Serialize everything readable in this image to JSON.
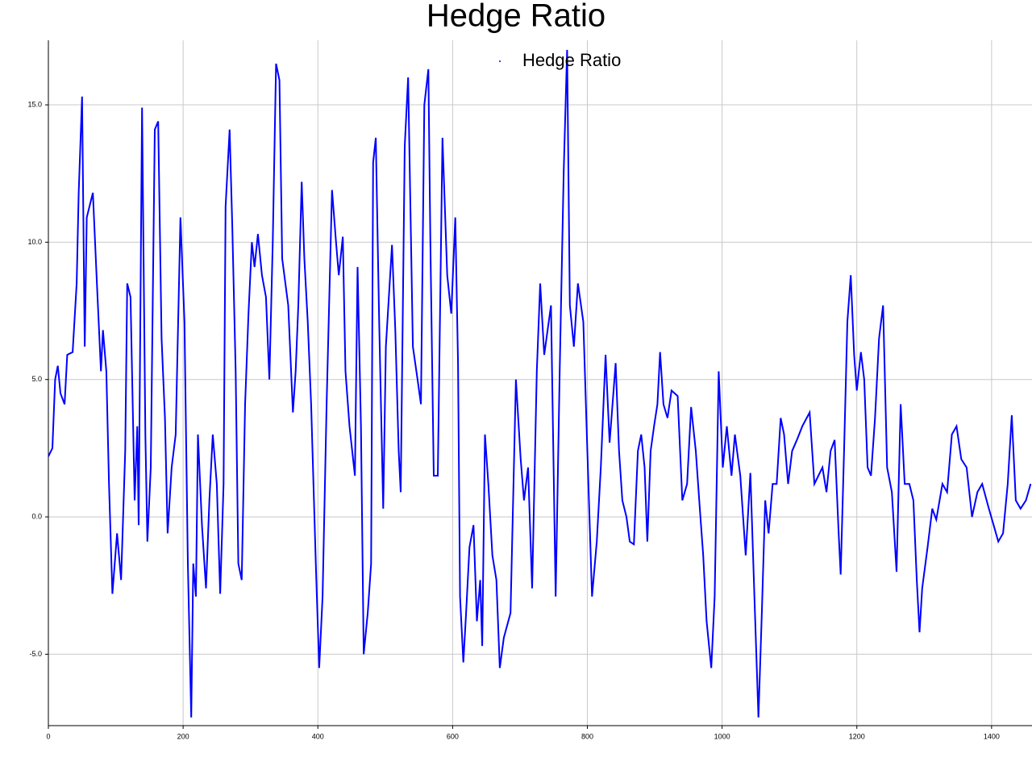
{
  "chart_data": {
    "type": "line",
    "title": "Hedge Ratio",
    "x": [
      0,
      6,
      10,
      14,
      18,
      24,
      28,
      36,
      42,
      45,
      50,
      54,
      57,
      66,
      72,
      78,
      81,
      86,
      90,
      95,
      102,
      108,
      114,
      117,
      122,
      128,
      132,
      134,
      139,
      144,
      147,
      152,
      158,
      163,
      168,
      173,
      177,
      183,
      189,
      196,
      202,
      207,
      212,
      215,
      219,
      222,
      228,
      234,
      239,
      244,
      250,
      255,
      260,
      263,
      269,
      273,
      278,
      282,
      287,
      292,
      297,
      302,
      306,
      311,
      317,
      323,
      328,
      333,
      338,
      343,
      347,
      356,
      363,
      367,
      371,
      376,
      380,
      385,
      390,
      397,
      402,
      407,
      413,
      421,
      427,
      431,
      437,
      441,
      447,
      455,
      459,
      464,
      468,
      474,
      479,
      482,
      486,
      491,
      497,
      501,
      510,
      515,
      520,
      523,
      529,
      534,
      541,
      548,
      553,
      558,
      564,
      567,
      572,
      578,
      585,
      592,
      598,
      604,
      608,
      611,
      616,
      620,
      625,
      631,
      636,
      641,
      644,
      648,
      653,
      659,
      665,
      670,
      676,
      686,
      694,
      701,
      706,
      712,
      718,
      725,
      730,
      736,
      746,
      753,
      759,
      765,
      770,
      774,
      780,
      786,
      794,
      800,
      807,
      814,
      820,
      827,
      833,
      842,
      847,
      852,
      858,
      863,
      869,
      875,
      880,
      885,
      889,
      894,
      899,
      904,
      908,
      913,
      919,
      925,
      934,
      941,
      948,
      954,
      961,
      967,
      972,
      977,
      984,
      989,
      995,
      1001,
      1007,
      1014,
      1019,
      1027,
      1035,
      1042,
      1048,
      1054,
      1059,
      1064,
      1069,
      1075,
      1081,
      1087,
      1092,
      1098,
      1104,
      1111,
      1119,
      1130,
      1137,
      1143,
      1149,
      1155,
      1161,
      1167,
      1173,
      1176,
      1181,
      1186,
      1191,
      1196,
      1200,
      1206,
      1211,
      1216,
      1221,
      1227,
      1233,
      1239,
      1245,
      1252,
      1259,
      1265,
      1271,
      1278,
      1284,
      1289,
      1293,
      1297,
      1305,
      1312,
      1318,
      1327,
      1334,
      1341,
      1348,
      1355,
      1363,
      1371,
      1379,
      1386,
      1396,
      1403,
      1410,
      1417,
      1424,
      1430,
      1436,
      1443,
      1451,
      1458
    ],
    "series": [
      {
        "name": "Hedge Ratio",
        "color": "#0000ff",
        "values": [
          2.2,
          2.5,
          5.0,
          5.5,
          4.5,
          4.1,
          5.9,
          6.0,
          8.5,
          11.8,
          15.3,
          6.2,
          10.9,
          11.8,
          8.5,
          5.3,
          6.8,
          5.3,
          1.2,
          -2.8,
          -0.6,
          -2.3,
          2.4,
          8.5,
          8.0,
          0.6,
          3.3,
          -0.3,
          14.9,
          3.0,
          -0.9,
          1.8,
          14.1,
          14.4,
          6.5,
          3.6,
          -0.6,
          1.8,
          3.0,
          10.9,
          7.1,
          -1.7,
          -7.3,
          -1.7,
          -2.9,
          3.0,
          -0.3,
          -2.6,
          0.6,
          3.0,
          1.2,
          -2.8,
          1.2,
          11.3,
          14.1,
          10.6,
          5.3,
          -1.7,
          -2.3,
          4.1,
          7.4,
          10.0,
          9.1,
          10.3,
          8.8,
          8.0,
          5.0,
          10.0,
          16.5,
          15.9,
          9.4,
          7.7,
          3.8,
          5.3,
          7.7,
          12.2,
          9.4,
          7.1,
          4.1,
          -1.7,
          -5.5,
          -2.9,
          4.1,
          11.9,
          10.0,
          8.8,
          10.2,
          5.3,
          3.3,
          1.5,
          9.1,
          3.3,
          -5.0,
          -3.5,
          -1.7,
          12.9,
          13.8,
          7.1,
          0.3,
          6.2,
          9.9,
          6.8,
          2.4,
          0.9,
          13.5,
          16.0,
          6.2,
          5.0,
          4.1,
          15.0,
          16.3,
          10.0,
          1.5,
          1.5,
          13.8,
          8.8,
          7.4,
          10.9,
          5.6,
          -2.9,
          -5.3,
          -3.5,
          -1.1,
          -0.3,
          -3.8,
          -2.3,
          -4.7,
          3.0,
          1.2,
          -1.4,
          -2.3,
          -5.5,
          -4.4,
          -3.5,
          5.0,
          2.1,
          0.6,
          1.8,
          -2.6,
          5.3,
          8.5,
          5.9,
          7.7,
          -2.9,
          5.3,
          12.6,
          17.0,
          7.7,
          6.2,
          8.5,
          7.1,
          2.4,
          -2.9,
          -0.9,
          1.8,
          5.9,
          2.7,
          5.6,
          2.4,
          0.6,
          0.0,
          -0.9,
          -1.0,
          2.4,
          3.0,
          1.8,
          -0.9,
          2.4,
          3.3,
          4.1,
          6.0,
          4.1,
          3.6,
          4.6,
          4.4,
          0.6,
          1.2,
          4.0,
          2.4,
          0.3,
          -1.4,
          -3.8,
          -5.5,
          -2.9,
          5.3,
          1.8,
          3.3,
          1.5,
          3.0,
          1.5,
          -1.4,
          1.6,
          -2.9,
          -7.3,
          -3.5,
          0.6,
          -0.6,
          1.2,
          1.2,
          3.6,
          3.0,
          1.2,
          2.4,
          2.8,
          3.3,
          3.8,
          1.2,
          1.5,
          1.8,
          0.9,
          2.4,
          2.8,
          -0.6,
          -2.1,
          2.4,
          7.1,
          8.8,
          5.9,
          4.6,
          6.0,
          5.0,
          1.8,
          1.5,
          3.6,
          6.5,
          7.7,
          1.8,
          0.9,
          -2.0,
          4.1,
          1.2,
          1.2,
          0.6,
          -2.3,
          -4.2,
          -2.6,
          -1.1,
          0.3,
          -0.1,
          1.2,
          0.9,
          3.0,
          3.3,
          2.1,
          1.8,
          0.0,
          0.9,
          1.2,
          0.3,
          -0.3,
          -0.9,
          -0.6,
          1.2,
          3.7,
          0.6,
          0.3,
          0.6,
          1.2
        ]
      }
    ],
    "xlim": [
      0,
      1460
    ],
    "ylim": [
      -7.6,
      17.35
    ],
    "xticks": [
      0,
      200,
      400,
      600,
      800,
      1000,
      1200,
      1400
    ],
    "yticks": [
      {
        "value": -5,
        "label": "-5.0"
      },
      {
        "value": 0,
        "label": "0.0"
      },
      {
        "value": 5,
        "label": "5.0"
      },
      {
        "value": 10,
        "label": "10.0"
      },
      {
        "value": 15,
        "label": "15.0"
      }
    ],
    "grid": true,
    "legend": "upper center"
  }
}
